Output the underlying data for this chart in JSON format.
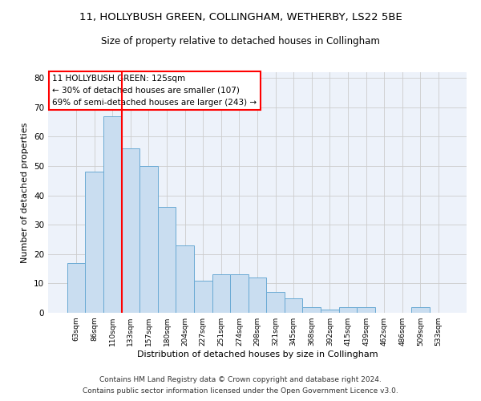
{
  "title1": "11, HOLLYBUSH GREEN, COLLINGHAM, WETHERBY, LS22 5BE",
  "title2": "Size of property relative to detached houses in Collingham",
  "xlabel": "Distribution of detached houses by size in Collingham",
  "ylabel": "Number of detached properties",
  "categories": [
    "63sqm",
    "86sqm",
    "110sqm",
    "133sqm",
    "157sqm",
    "180sqm",
    "204sqm",
    "227sqm",
    "251sqm",
    "274sqm",
    "298sqm",
    "321sqm",
    "345sqm",
    "368sqm",
    "392sqm",
    "415sqm",
    "439sqm",
    "462sqm",
    "486sqm",
    "509sqm",
    "533sqm"
  ],
  "values": [
    17,
    48,
    67,
    56,
    50,
    36,
    23,
    11,
    13,
    13,
    12,
    7,
    5,
    2,
    1,
    2,
    2,
    0,
    0,
    2,
    0
  ],
  "bar_color": "#c9ddf0",
  "bar_edge_color": "#6aaad4",
  "red_line_index": 2,
  "annotation_lines": [
    "11 HOLLYBUSH GREEN: 125sqm",
    "← 30% of detached houses are smaller (107)",
    "69% of semi-detached houses are larger (243) →"
  ],
  "annotation_box_color": "white",
  "annotation_box_edge_color": "red",
  "ylim": [
    0,
    82
  ],
  "yticks": [
    0,
    10,
    20,
    30,
    40,
    50,
    60,
    70,
    80
  ],
  "grid_color": "#cccccc",
  "background_color": "#edf2fa",
  "footer1": "Contains HM Land Registry data © Crown copyright and database right 2024.",
  "footer2": "Contains public sector information licensed under the Open Government Licence v3.0.",
  "title1_fontsize": 9.5,
  "title2_fontsize": 8.5,
  "xlabel_fontsize": 8,
  "ylabel_fontsize": 8,
  "annotation_fontsize": 7.5,
  "footer_fontsize": 6.5
}
